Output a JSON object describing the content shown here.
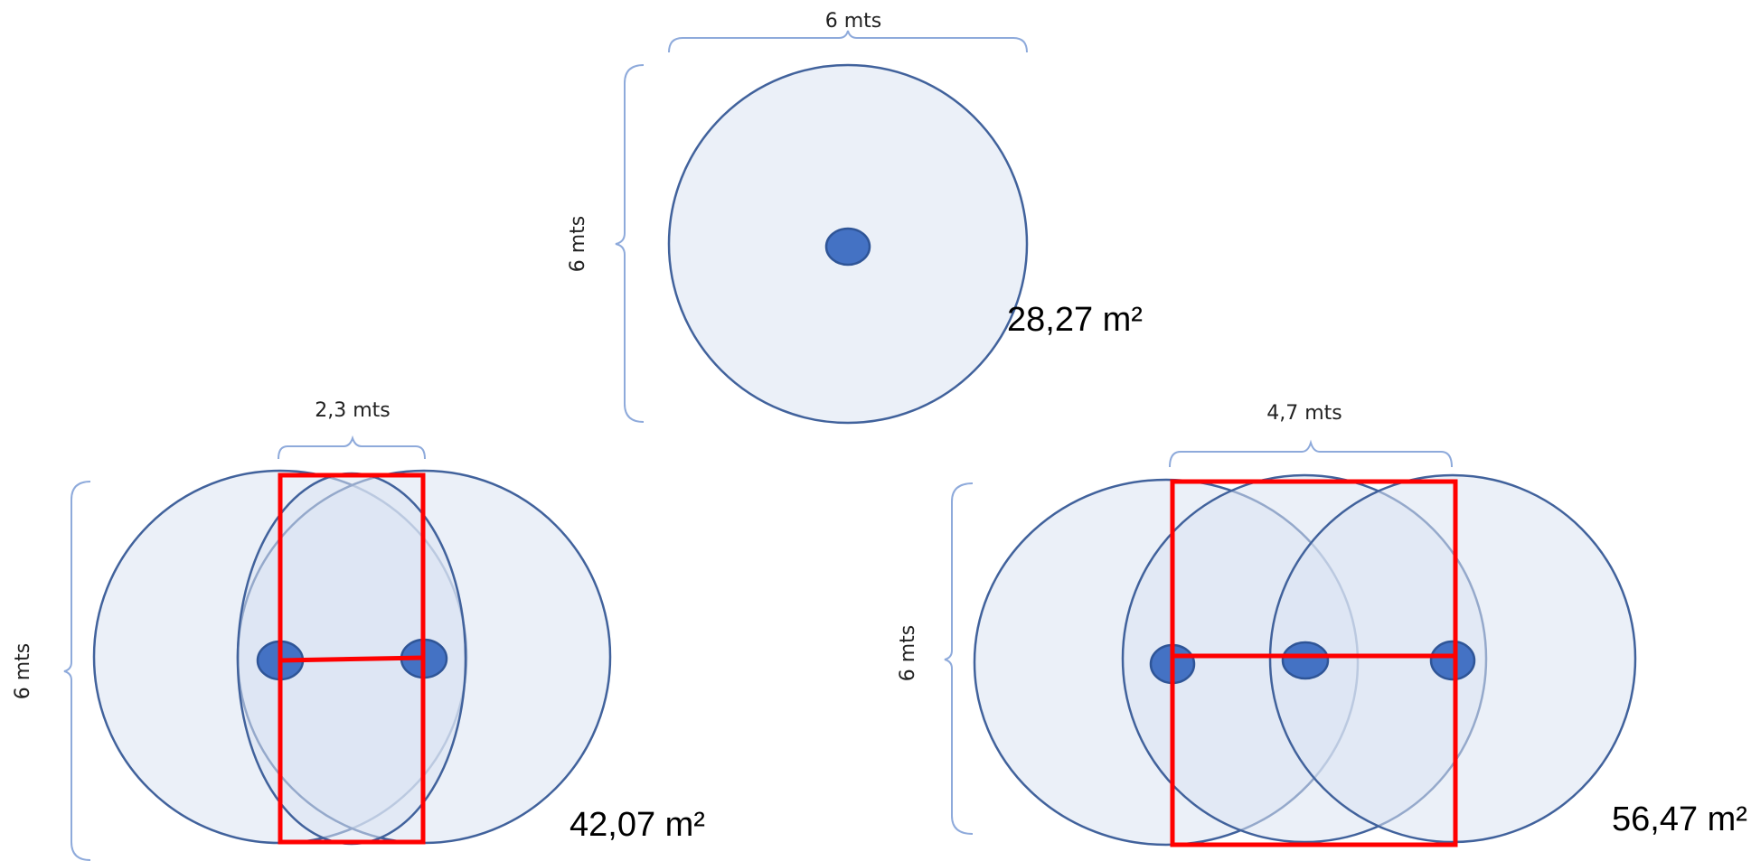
{
  "diagrams": [
    {
      "id": "single",
      "width_label": "6 mts",
      "height_label": "6 mts",
      "area_label": "28,27 m²"
    },
    {
      "id": "double",
      "width_label": "2,3 mts",
      "height_label": "6 mts",
      "area_label": "42,07 m²"
    },
    {
      "id": "triple",
      "width_label": "4,7 mts",
      "height_label": "6 mts",
      "area_label": "56,47 m²"
    }
  ],
  "colors": {
    "coverage_fill": "#dae3f3",
    "coverage_stroke": "#41629c",
    "sprinkler_fill": "#4472c4",
    "frame": "#ff0000",
    "brace": "#8eaadb"
  }
}
